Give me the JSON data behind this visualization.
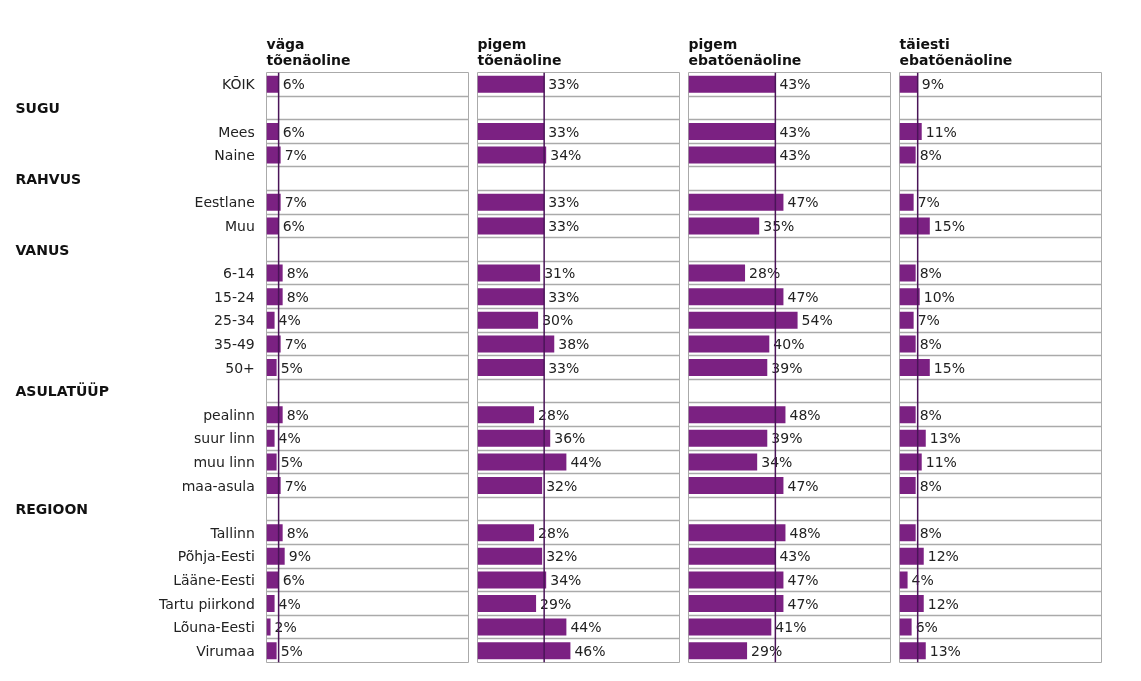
{
  "chart_data": [
    {
      "type": "bar",
      "orientation": "horizontal",
      "title": "väga tõenäoline",
      "color": "#7b2182",
      "xlim": [
        0,
        100
      ],
      "tick_labels": "y",
      "grid": "y",
      "categories": [
        "KÕIK",
        null,
        "Mees",
        "Naine",
        null,
        "Eestlane",
        "Muu",
        null,
        "6-14",
        "15-24",
        "25-34",
        "35-49",
        "50+",
        null,
        "pealinn",
        "suur linn",
        "muu linn",
        "maa-asula",
        null,
        "Tallinn",
        "Põhja-Eesti",
        "Lääne-Eesti",
        "Tartu piirkond",
        "Lõuna-Eesti",
        "Virumaa"
      ],
      "annotations": [
        "SUGU",
        "RAHVUS",
        "VANUS",
        "ASULATÜÜP",
        "REGIOON"
      ],
      "values": [
        6,
        null,
        6,
        7,
        null,
        7,
        6,
        null,
        8,
        8,
        4,
        7,
        5,
        null,
        8,
        4,
        5,
        7,
        null,
        8,
        9,
        6,
        4,
        2,
        5
      ],
      "value_labels": [
        "6%",
        null,
        "6%",
        "7%",
        null,
        "7%",
        "6%",
        null,
        "8%",
        "8%",
        "4%",
        "7%",
        "5%",
        null,
        "8%",
        "4%",
        "5%",
        "7%",
        null,
        "8%",
        "9%",
        "6%",
        "4%",
        "2%",
        "5%"
      ],
      "ref_lines": [
        {
          "axis": "x",
          "value": 6,
          "color": "#4a1458"
        }
      ]
    },
    {
      "type": "bar",
      "orientation": "horizontal",
      "title": "pigem tõenäoline",
      "color": "#7b2182",
      "xlim": [
        0,
        100
      ],
      "tick_labels": false,
      "grid": "y",
      "values": [
        33,
        null,
        33,
        34,
        null,
        33,
        33,
        null,
        31,
        33,
        30,
        38,
        33,
        null,
        28,
        36,
        44,
        32,
        null,
        28,
        32,
        34,
        29,
        44,
        46
      ],
      "value_labels": [
        "33%",
        null,
        "33%",
        "34%",
        null,
        "33%",
        "33%",
        null,
        "31%",
        "33%",
        "30%",
        "38%",
        "33%",
        null,
        "28%",
        "36%",
        "44%",
        "32%",
        null,
        "28%",
        "32%",
        "34%",
        "29%",
        "44%",
        "46%"
      ],
      "ref_lines": [
        {
          "axis": "x",
          "value": 33,
          "color": "#4a1458"
        }
      ]
    },
    {
      "type": "bar",
      "orientation": "horizontal",
      "title": "pigem ebatõenäoline",
      "color": "#7b2182",
      "xlim": [
        0,
        100
      ],
      "tick_labels": false,
      "grid": "y",
      "values": [
        43,
        null,
        43,
        43,
        null,
        47,
        35,
        null,
        28,
        47,
        54,
        40,
        39,
        null,
        48,
        39,
        34,
        47,
        null,
        48,
        43,
        47,
        47,
        41,
        29
      ],
      "value_labels": [
        "43%",
        null,
        "43%",
        "43%",
        null,
        "47%",
        "35%",
        null,
        "28%",
        "47%",
        "54%",
        "40%",
        "39%",
        null,
        "48%",
        "39%",
        "34%",
        "47%",
        null,
        "48%",
        "43%",
        "47%",
        "47%",
        "41%",
        "29%"
      ],
      "ref_lines": [
        {
          "axis": "x",
          "value": 43,
          "color": "#4a1458"
        }
      ]
    },
    {
      "type": "bar",
      "orientation": "horizontal",
      "title": "täiesti ebatõenäoline",
      "color": "#7b2182",
      "xlim": [
        0,
        100
      ],
      "tick_labels": false,
      "grid": "y",
      "values": [
        9,
        null,
        11,
        8,
        null,
        7,
        15,
        null,
        8,
        10,
        7,
        8,
        15,
        null,
        8,
        13,
        11,
        8,
        null,
        8,
        12,
        4,
        12,
        6,
        13
      ],
      "value_labels": [
        "9%",
        null,
        "11%",
        "8%",
        null,
        "7%",
        "15%",
        null,
        "8%",
        "10%",
        "7%",
        "8%",
        "15%",
        null,
        "8%",
        "13%",
        "11%",
        "8%",
        null,
        "8%",
        "12%",
        "4%",
        "12%",
        "6%",
        "13%"
      ],
      "ref_lines": [
        {
          "axis": "x",
          "value": 9,
          "color": "#4a1458"
        }
      ]
    }
  ]
}
